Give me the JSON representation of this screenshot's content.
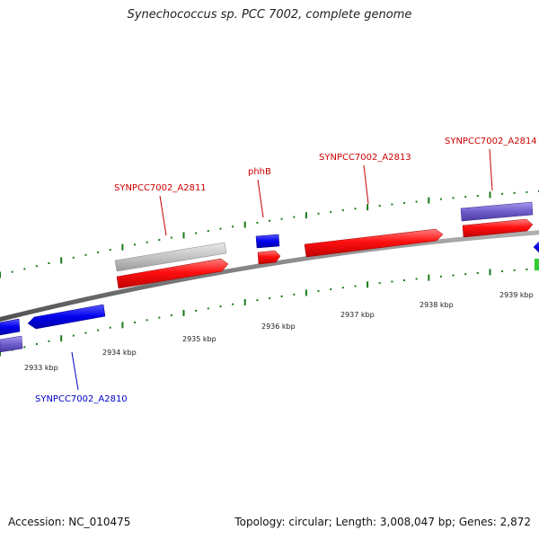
{
  "title": "Synechococcus sp. PCC 7002, complete genome",
  "footer": {
    "accession": "Accession: NC_010475",
    "summary": "Topology: circular; Length: 3,008,047 bp; Genes: 2,872"
  },
  "colors": {
    "forward_cds": "#ff0000",
    "reverse_cds": "#0000ee",
    "forward_rna": "#c8c8c8",
    "reverse_rna": "#7060c8",
    "tick": "#1a7a1a",
    "backbone": "#808080",
    "label_forward": "#cc0000",
    "label_reverse": "#0000cc",
    "extra_green": "#33cc33"
  },
  "tick_labels": [
    "2933 kbp",
    "2934 kbp",
    "2935 kbp",
    "2936 kbp",
    "2937 kbp",
    "2938 kbp",
    "2939 kbp"
  ],
  "gene_labels": [
    {
      "name": "SYNPCC7002_A2811",
      "strand": "forward"
    },
    {
      "name": "phhB",
      "strand": "forward"
    },
    {
      "name": "SYNPCC7002_A2813",
      "strand": "forward"
    },
    {
      "name": "SYNPCC7002_A2814",
      "strand": "forward"
    },
    {
      "name": "SYNPCC7002_A2810",
      "strand": "reverse"
    }
  ]
}
